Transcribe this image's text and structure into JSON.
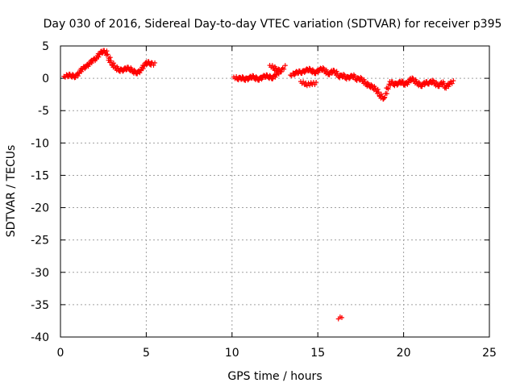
{
  "chart_data": {
    "type": "scatter",
    "title": "Day 030 of 2016, Sidereal Day-to-day VTEC variation (SDTVAR) for receiver p395",
    "xlabel": "GPS time / hours",
    "ylabel": "SDTVAR / TECUs",
    "xlim": [
      0,
      25
    ],
    "ylim": [
      -40,
      5
    ],
    "xticks": [
      0,
      5,
      10,
      15,
      20,
      25
    ],
    "yticks": [
      5,
      0,
      -5,
      -10,
      -15,
      -20,
      -25,
      -30,
      -35,
      -40
    ],
    "grid": true,
    "marker": "+",
    "color": "#ff0000",
    "series": [
      {
        "name": "SDTVAR",
        "x": [
          0.2,
          0.4,
          0.6,
          0.8,
          1.0,
          1.2,
          1.4,
          1.6,
          1.8,
          2.0,
          2.2,
          2.4,
          2.6,
          2.8,
          3.0,
          3.2,
          3.4,
          3.6,
          3.8,
          4.0,
          4.2,
          4.4,
          4.6,
          4.8,
          5.0,
          5.2,
          10.1,
          10.3,
          10.5,
          10.7,
          10.9,
          11.1,
          11.3,
          11.5,
          11.7,
          11.9,
          12.1,
          12.3,
          12.5,
          12.8,
          12.2,
          12.4,
          12.6,
          13.4,
          13.6,
          13.8,
          14.0,
          14.2,
          14.4,
          14.6,
          14.8,
          15.0,
          15.2,
          15.4,
          15.6,
          15.8,
          16.0,
          16.2,
          16.4,
          16.6,
          16.8,
          17.0,
          17.2,
          17.4,
          17.6,
          17.8,
          18.0,
          18.2,
          18.4,
          18.6,
          18.8,
          19.0,
          19.2,
          19.4,
          19.6,
          19.8,
          20.0,
          20.2,
          20.4,
          20.6,
          20.8,
          21.0,
          21.2,
          21.4,
          21.6,
          21.8,
          22.0,
          22.2,
          22.4,
          22.6,
          14.0,
          14.3,
          14.6,
          16.2,
          16.3,
          16.4
        ],
        "y": [
          0.3,
          0.5,
          0.4,
          0.2,
          0.8,
          1.5,
          1.8,
          2.2,
          2.8,
          3.0,
          3.8,
          4.2,
          4.0,
          2.8,
          2.0,
          1.5,
          1.2,
          1.3,
          1.6,
          1.4,
          1.0,
          0.8,
          1.2,
          2.0,
          2.5,
          2.2,
          0.2,
          -0.1,
          0.1,
          -0.2,
          0.0,
          0.3,
          0.0,
          -0.2,
          0.2,
          0.4,
          0.2,
          0.0,
          0.6,
          1.0,
          2.0,
          1.5,
          1.2,
          0.5,
          0.8,
          1.0,
          0.9,
          1.2,
          1.4,
          1.1,
          0.8,
          1.3,
          1.5,
          1.0,
          0.6,
          1.2,
          0.8,
          0.2,
          0.5,
          0.0,
          0.2,
          0.4,
          -0.2,
          0.0,
          -0.5,
          -1.0,
          -1.2,
          -1.5,
          -2.0,
          -2.8,
          -3.2,
          -1.5,
          -0.5,
          -1.0,
          -0.8,
          -0.5,
          -1.0,
          -0.6,
          0.0,
          -0.5,
          -0.9,
          -1.2,
          -0.6,
          -0.8,
          -0.4,
          -0.9,
          -1.2,
          -0.6,
          -1.5,
          -0.8,
          -0.5,
          -1.0,
          -0.8,
          -37.2,
          -36.9,
          -37.0
        ]
      }
    ]
  }
}
